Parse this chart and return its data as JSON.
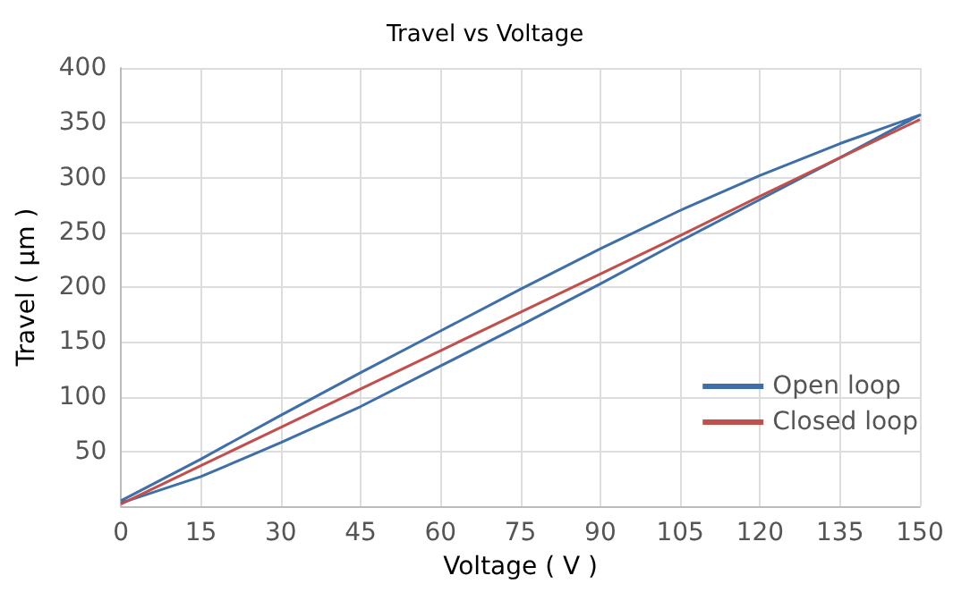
{
  "chart_data": {
    "type": "line",
    "title": "Travel vs Voltage",
    "xlabel": "Voltage ( V )",
    "ylabel": "Travel ( μm )",
    "xlim": [
      0,
      150
    ],
    "xticks": [
      0,
      15,
      30,
      45,
      60,
      75,
      90,
      105,
      120,
      135,
      150
    ],
    "ylim": [
      0,
      400
    ],
    "yticks": [
      {
        "value": 0,
        "label": null
      },
      50,
      100,
      150,
      200,
      250,
      300,
      350,
      400
    ],
    "grid": true,
    "legend": "bottom right",
    "marker": "none",
    "line_style": "solid",
    "series": [
      {
        "name": "Open loop",
        "color": "#3f6fa6",
        "x": [
          0,
          15,
          30,
          45,
          60,
          75,
          90,
          105,
          120,
          135,
          150,
          135,
          120,
          105,
          90,
          75,
          60,
          45,
          30,
          15,
          0
        ],
        "values": [
          3,
          27,
          58,
          91,
          128,
          165,
          203,
          242,
          280,
          318,
          357,
          331,
          302,
          270,
          235,
          198,
          160,
          122,
          83,
          43,
          5
        ]
      },
      {
        "name": "Closed loop",
        "color": "#c0504d",
        "x": [
          0,
          15,
          30,
          45,
          60,
          75,
          90,
          105,
          120,
          135,
          150
        ],
        "values": [
          2,
          37,
          72,
          107,
          142,
          177,
          212,
          247,
          283,
          318,
          353
        ]
      }
    ]
  }
}
